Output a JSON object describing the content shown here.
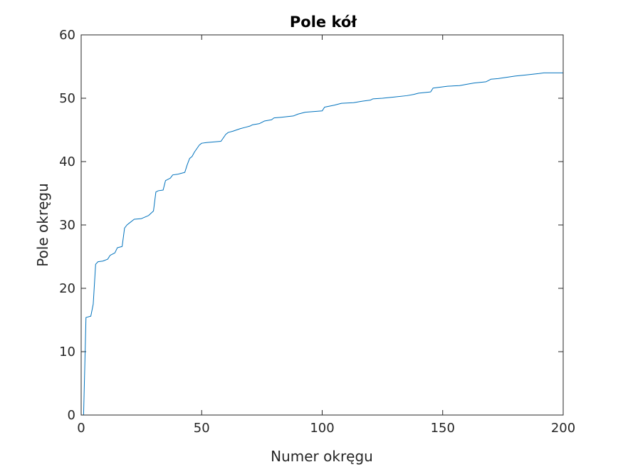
{
  "chart_data": {
    "type": "line",
    "title": "Pole kół",
    "xlabel": "Numer okręgu",
    "ylabel": "Pole okręgu",
    "xlim": [
      0,
      200
    ],
    "ylim": [
      0,
      60
    ],
    "xticks": [
      0,
      50,
      100,
      150,
      200
    ],
    "yticks": [
      0,
      10,
      20,
      30,
      40,
      50,
      60
    ],
    "grid": false,
    "box": true,
    "series": [
      {
        "color": "#0072bd",
        "x": [
          1,
          2,
          4,
          5,
          6,
          7,
          9,
          11,
          12,
          14,
          15,
          17,
          18,
          19,
          20,
          22,
          25,
          28,
          30,
          31,
          32,
          34,
          35,
          37,
          38,
          40,
          43,
          44,
          45,
          46,
          47,
          49,
          50,
          52,
          55,
          58,
          60,
          61,
          63,
          66,
          68,
          70,
          71,
          74,
          76,
          79,
          80,
          83,
          88,
          90,
          93,
          100,
          101,
          105,
          108,
          113,
          116,
          120,
          121,
          125,
          130,
          135,
          138,
          140,
          145,
          146,
          150,
          152,
          157,
          160,
          163,
          168,
          170,
          173,
          180,
          185,
          190,
          192,
          195,
          200
        ],
        "y": [
          0,
          15.4,
          15.6,
          17.5,
          23.8,
          24.2,
          24.3,
          24.6,
          25.2,
          25.6,
          26.4,
          26.6,
          29.5,
          30.0,
          30.3,
          30.9,
          31.0,
          31.5,
          32.2,
          35.2,
          35.4,
          35.5,
          37.0,
          37.4,
          37.9,
          38.0,
          38.3,
          39.5,
          40.5,
          40.8,
          41.5,
          42.6,
          42.9,
          43.0,
          43.1,
          43.2,
          44.3,
          44.6,
          44.8,
          45.2,
          45.4,
          45.6,
          45.8,
          46.0,
          46.4,
          46.6,
          46.9,
          47.0,
          47.2,
          47.5,
          47.8,
          48.0,
          48.6,
          48.9,
          49.2,
          49.3,
          49.5,
          49.7,
          49.9,
          50.0,
          50.2,
          50.4,
          50.6,
          50.8,
          51.0,
          51.6,
          51.8,
          51.9,
          52.0,
          52.2,
          52.4,
          52.6,
          53.0,
          53.1,
          53.5,
          53.7,
          53.9,
          54.0,
          54.0,
          54.0
        ]
      }
    ]
  }
}
